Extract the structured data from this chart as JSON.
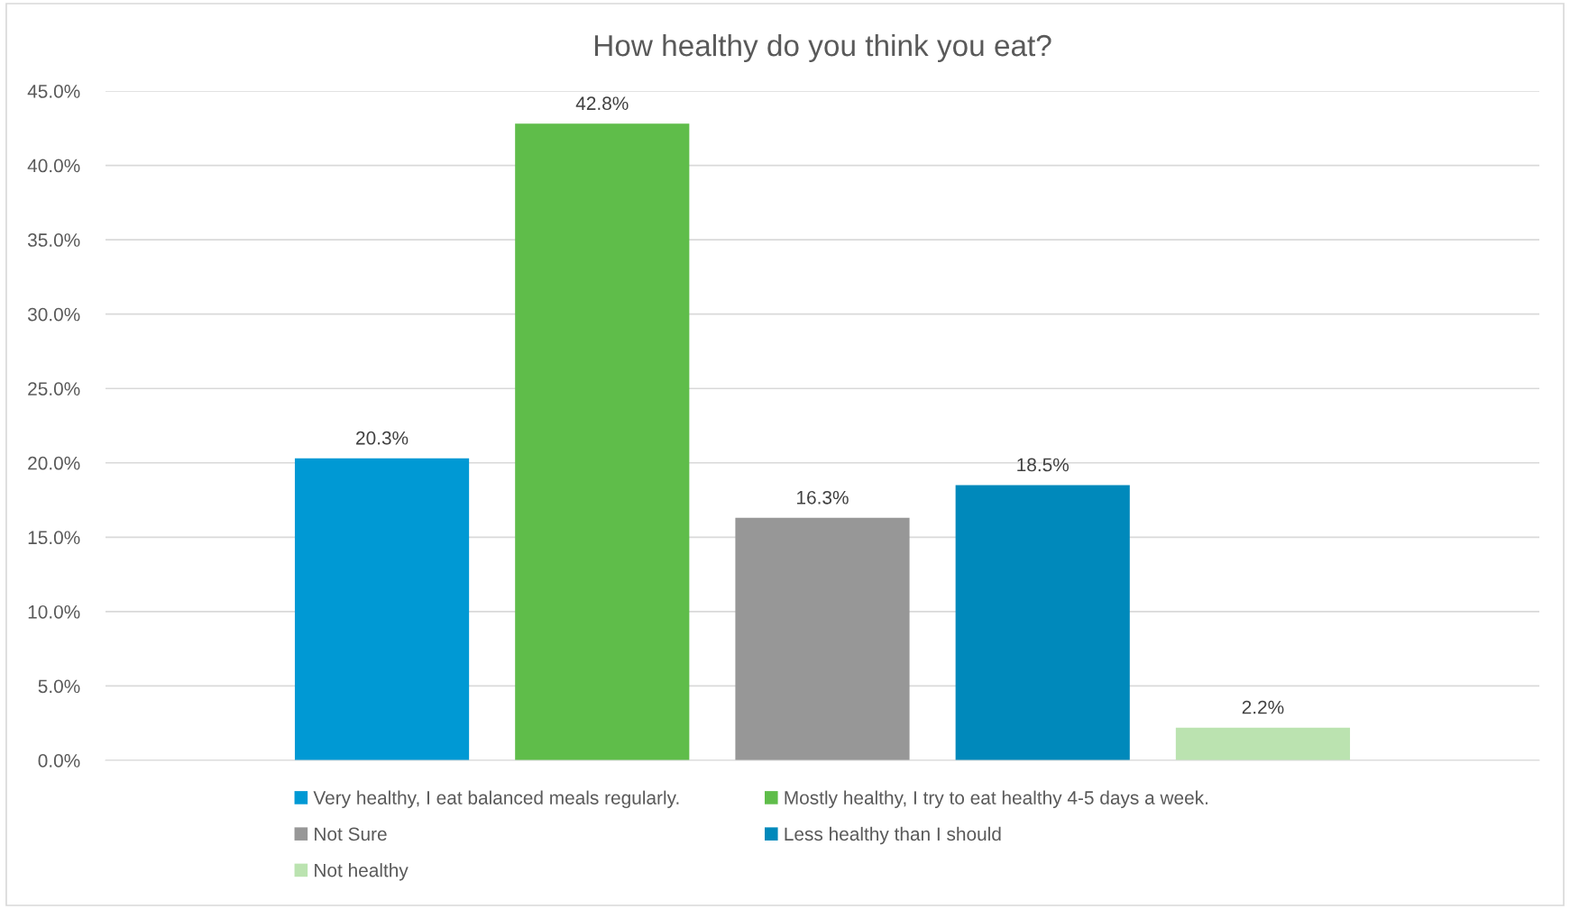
{
  "chart_data": {
    "type": "bar",
    "title": "How healthy do you think you eat?",
    "categories": [
      null
    ],
    "series": [
      {
        "name": "Very healthy, I eat balanced meals regularly.",
        "color": "#0099d4",
        "values": [
          20.3
        ],
        "value_labels": [
          "20.3%"
        ]
      },
      {
        "name": "Mostly healthy, I try to eat healthy 4-5 days a week.",
        "color": "#5fbd4a",
        "values": [
          42.8
        ],
        "value_labels": [
          "42.8%"
        ]
      },
      {
        "name": "Not Sure",
        "color": "#979797",
        "values": [
          16.3
        ],
        "value_labels": [
          "16.3%"
        ]
      },
      {
        "name": "Less healthy than I should",
        "color": "#0089bb",
        "values": [
          18.5
        ],
        "value_labels": [
          "18.5%"
        ]
      },
      {
        "name": "Not healthy",
        "color": "#bbe3b0",
        "values": [
          2.2
        ],
        "value_labels": [
          "2.2%"
        ]
      }
    ],
    "ylim": [
      0,
      45
    ],
    "yticks": [
      {
        "value": 0,
        "label": "0.0%"
      },
      {
        "value": 5,
        "label": "5.0%"
      },
      {
        "value": 10,
        "label": "10.0%"
      },
      {
        "value": 15,
        "label": "15.0%"
      },
      {
        "value": 20,
        "label": "20.0%"
      },
      {
        "value": 25,
        "label": "25.0%"
      },
      {
        "value": 30,
        "label": "30.0%"
      },
      {
        "value": 35,
        "label": "35.0%"
      },
      {
        "value": 40,
        "label": "40.0%"
      },
      {
        "value": 45,
        "label": "45.0%"
      }
    ],
    "grid": "y",
    "legend": "bottom"
  }
}
